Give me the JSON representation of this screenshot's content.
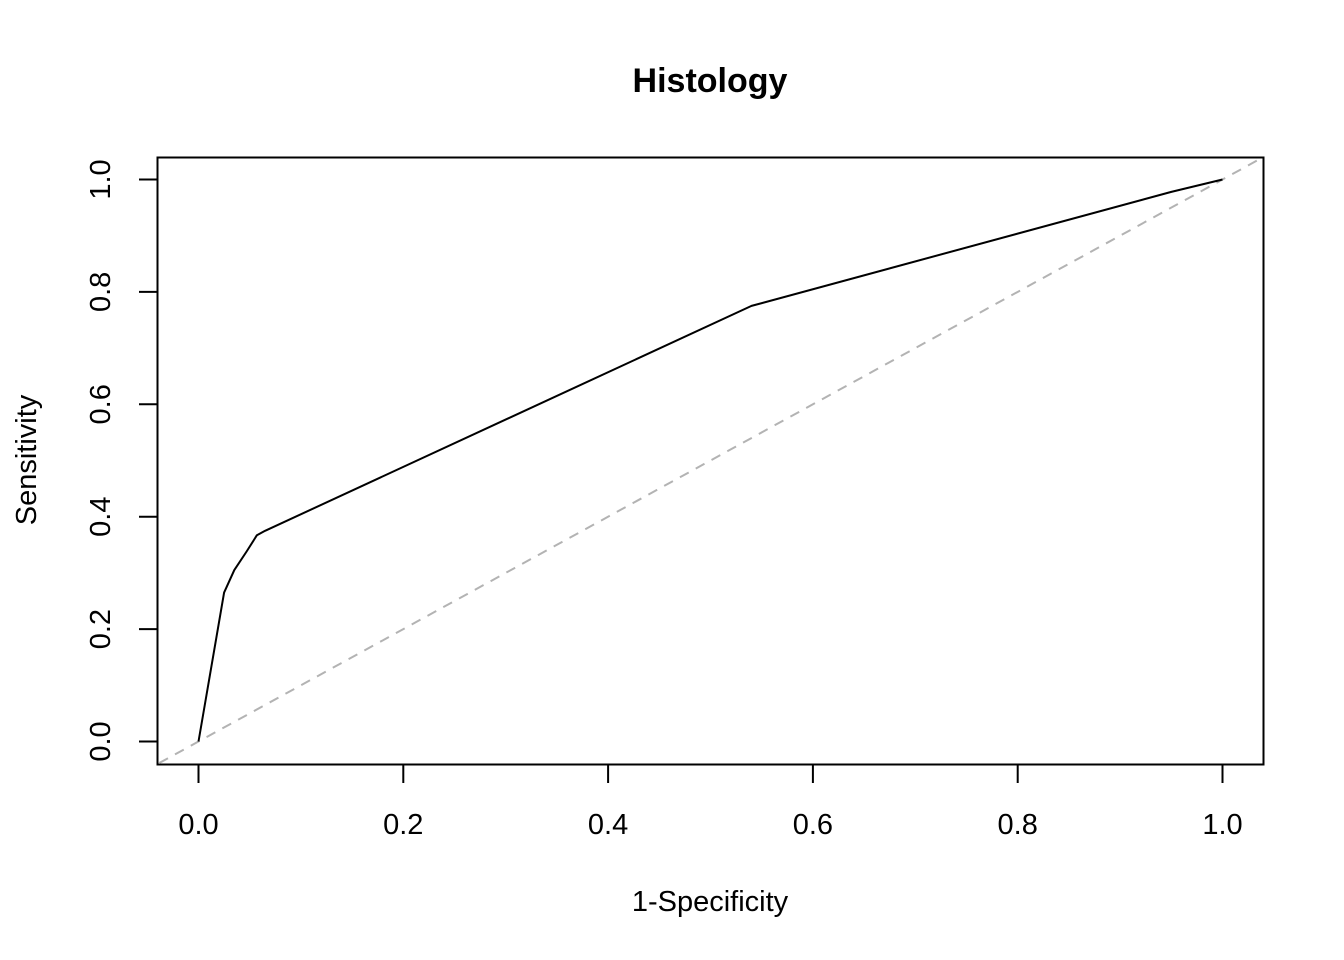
{
  "chart_data": {
    "type": "line",
    "title": "Histology",
    "xlabel": "1-Specificity",
    "ylabel": "Sensitivity",
    "xlim": [
      0,
      1
    ],
    "ylim": [
      0,
      1
    ],
    "x_ticks": [
      "0.0",
      "0.2",
      "0.4",
      "0.6",
      "0.8",
      "1.0"
    ],
    "y_ticks": [
      "0.0",
      "0.2",
      "0.4",
      "0.6",
      "0.8",
      "1.0"
    ],
    "grid": false,
    "series": [
      {
        "color": "#000000",
        "x": [
          0.0,
          0.025,
          0.035,
          0.047,
          0.057,
          0.065,
          0.54,
          0.95,
          1.0
        ],
        "y": [
          0.0,
          0.265,
          0.305,
          0.338,
          0.367,
          0.375,
          0.775,
          0.978,
          1.0
        ]
      }
    ],
    "reference_line": {
      "style": "dashed",
      "color": "#b3b3b3",
      "x": [
        0,
        1
      ],
      "y": [
        0,
        1
      ]
    }
  }
}
